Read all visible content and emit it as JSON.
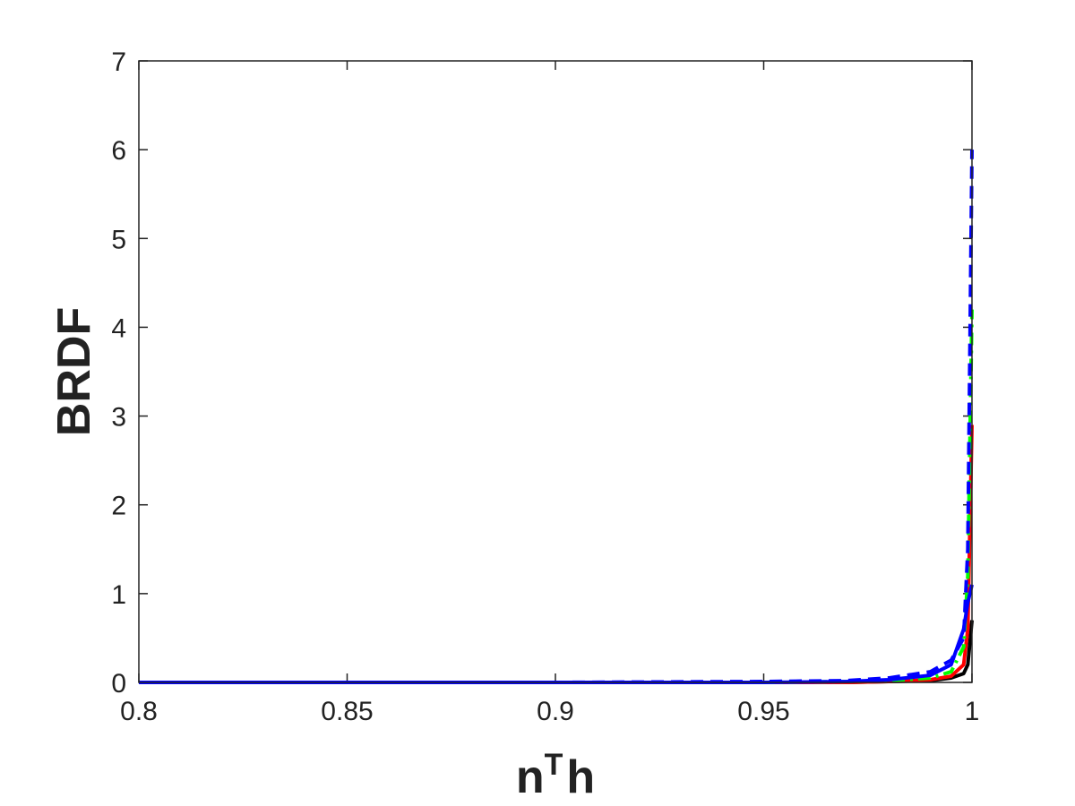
{
  "chart_data": {
    "type": "line",
    "xlabel": [
      "n",
      "T",
      "h"
    ],
    "ylabel": "BRDF",
    "x": [
      0.8,
      0.85,
      0.9,
      0.95,
      0.97,
      0.98,
      0.99,
      0.995,
      0.998,
      0.999,
      1
    ],
    "series": [
      {
        "color": "#000000",
        "dash": "solid",
        "values": [
          0,
          0,
          0,
          0,
          0,
          0.01,
          0.02,
          0.05,
          0.1,
          0.2,
          0.7
        ]
      },
      {
        "color": "#ff0000",
        "dash": "solid",
        "values": [
          0,
          0,
          0,
          0,
          0,
          0.01,
          0.03,
          0.07,
          0.2,
          0.6,
          2.9
        ]
      },
      {
        "color": "#00ff00",
        "dash": "dashdot",
        "values": [
          0,
          0,
          0,
          0,
          0.01,
          0.02,
          0.05,
          0.12,
          0.4,
          1.2,
          4.2
        ]
      },
      {
        "color": "#0000ff",
        "dash": "solid",
        "values": [
          0,
          0,
          0,
          0,
          0.01,
          0.03,
          0.08,
          0.2,
          0.6,
          0.9,
          1.1
        ]
      },
      {
        "color": "#0000ff",
        "dash": "dashed",
        "values": [
          0,
          0,
          0,
          0.01,
          0.02,
          0.05,
          0.12,
          0.25,
          0.5,
          1.5,
          6
        ]
      }
    ],
    "xlim": [
      0.8,
      1
    ],
    "ylim": [
      0,
      7
    ],
    "xticks": [
      0.8,
      0.85,
      0.9,
      0.95,
      1
    ],
    "yticks": [
      0,
      1,
      2,
      3,
      4,
      5,
      6,
      7
    ],
    "grid": false
  }
}
